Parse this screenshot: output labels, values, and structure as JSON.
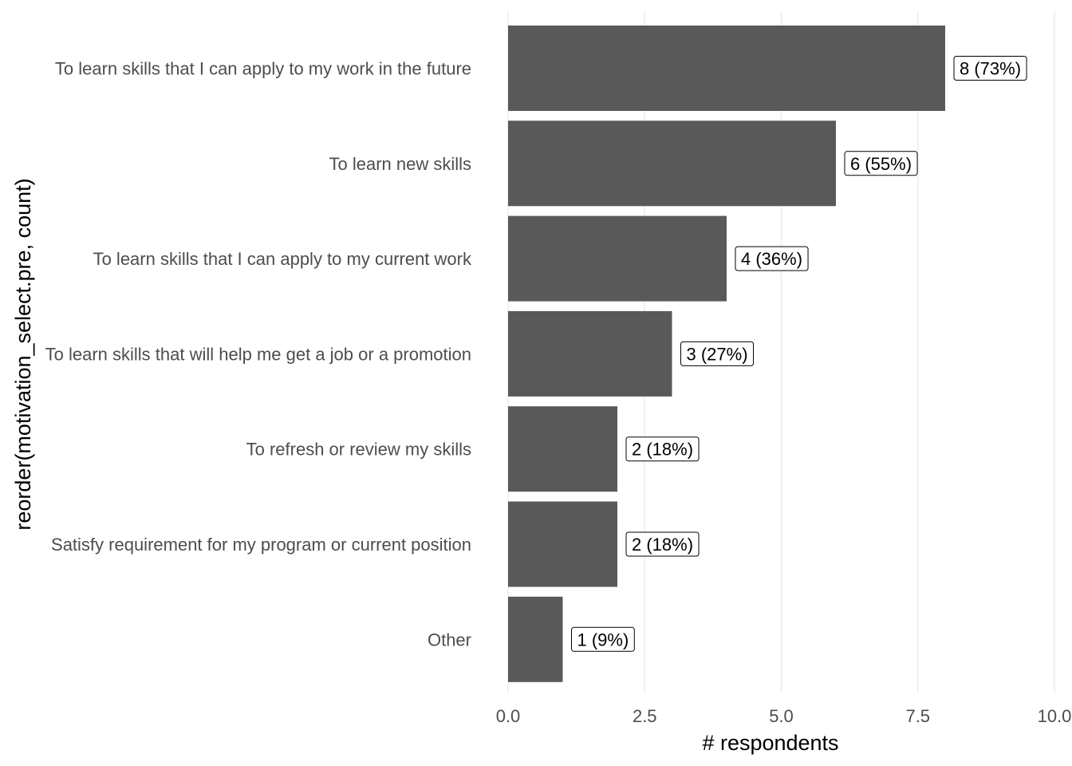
{
  "chart_data": {
    "type": "bar",
    "orientation": "horizontal",
    "categories": [
      "To learn skills that I can apply to my work in the future",
      "To learn new skills",
      "To learn skills that I can apply to my current work",
      "To learn skills that will help me get a job or a promotion",
      "To refresh or review my skills",
      "Satisfy requirement for my program or current position",
      "Other"
    ],
    "values": [
      8,
      6,
      4,
      3,
      2,
      2,
      1
    ],
    "data_labels": [
      "8 (73%)",
      "6 (55%)",
      "4 (36%)",
      "3 (27%)",
      "2 (18%)",
      "2 (18%)",
      "1 (9%)"
    ],
    "xlabel": "# respondents",
    "ylabel": "reorder(motivation_select.pre, count)",
    "xlim": [
      0,
      10
    ],
    "x_ticks": [
      0,
      2.5,
      5,
      7.5,
      10
    ],
    "x_tick_labels": [
      "0.0",
      "2.5",
      "5.0",
      "7.5",
      "10.0"
    ],
    "grid": "vertical",
    "bar_color": "#595959"
  }
}
